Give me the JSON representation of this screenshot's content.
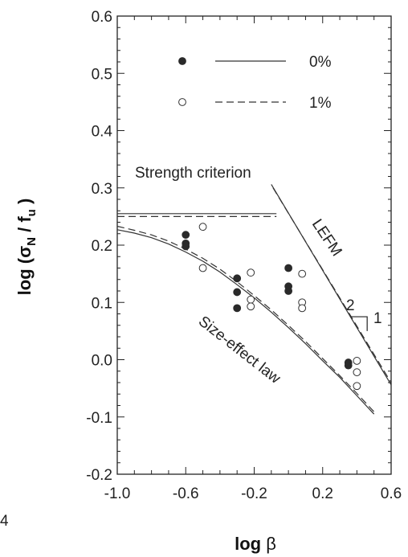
{
  "chart_data": {
    "type": "scatter",
    "xlabel_main": "log ",
    "xlabel_symbol": "β",
    "ylabel_main": "log (σ",
    "ylabel_sub1": "N",
    "ylabel_mid": " / f",
    "ylabel_sub2": "u",
    "ylabel_end": " )",
    "xlim": [
      -1.0,
      0.6
    ],
    "ylim": [
      -0.2,
      0.6
    ],
    "x_ticks": [
      -1.0,
      -0.6,
      -0.2,
      0.2,
      0.6
    ],
    "x_tick_labels": [
      "-1.0",
      "-0.6",
      "-0.2",
      "0.2",
      "0.6"
    ],
    "y_ticks": [
      -0.2,
      -0.1,
      0.0,
      0.1,
      0.2,
      0.3,
      0.4,
      0.5,
      0.6
    ],
    "y_tick_labels": [
      "-0.2",
      "-0.1",
      "0.0",
      "0.1",
      "0.2",
      "0.3",
      "0.4",
      "0.5",
      "0.6"
    ],
    "cutoff_label": "4",
    "grid": false,
    "legend_position": "top-right",
    "series": [
      {
        "name": "0%",
        "marker": "filled",
        "line_style": "solid",
        "points": [
          [
            -0.6,
            0.218
          ],
          [
            -0.6,
            0.203
          ],
          [
            -0.6,
            0.198
          ],
          [
            -0.3,
            0.142
          ],
          [
            -0.3,
            0.118
          ],
          [
            -0.3,
            0.09
          ],
          [
            0.0,
            0.16
          ],
          [
            0.0,
            0.128
          ],
          [
            0.0,
            0.12
          ],
          [
            0.35,
            -0.005
          ],
          [
            0.35,
            -0.01
          ]
        ],
        "size_effect_curve": [
          [
            -1.0,
            0.227
          ],
          [
            -0.9,
            0.221
          ],
          [
            -0.8,
            0.213
          ],
          [
            -0.7,
            0.202
          ],
          [
            -0.6,
            0.188
          ],
          [
            -0.5,
            0.172
          ],
          [
            -0.4,
            0.153
          ],
          [
            -0.3,
            0.131
          ],
          [
            -0.2,
            0.108
          ],
          [
            -0.1,
            0.083
          ],
          [
            0.0,
            0.056
          ],
          [
            0.1,
            0.028
          ],
          [
            0.2,
            -0.002
          ],
          [
            0.3,
            -0.031
          ],
          [
            0.4,
            -0.063
          ],
          [
            0.5,
            -0.095
          ]
        ],
        "strength_level": 0.255,
        "lefm_line": [
          [
            -0.1,
            0.306
          ],
          [
            0.6,
            -0.044
          ]
        ]
      },
      {
        "name": "1%",
        "marker": "open",
        "line_style": "dashed",
        "points": [
          [
            -0.5,
            0.232
          ],
          [
            -0.5,
            0.16
          ],
          [
            -0.22,
            0.152
          ],
          [
            -0.22,
            0.105
          ],
          [
            -0.22,
            0.093
          ],
          [
            0.08,
            0.15
          ],
          [
            0.08,
            0.1
          ],
          [
            0.08,
            0.09
          ],
          [
            0.4,
            -0.002
          ],
          [
            0.4,
            -0.022
          ],
          [
            0.4,
            -0.046
          ]
        ],
        "size_effect_curve": [
          [
            -1.0,
            0.233
          ],
          [
            -0.9,
            0.226
          ],
          [
            -0.8,
            0.218
          ],
          [
            -0.7,
            0.207
          ],
          [
            -0.6,
            0.193
          ],
          [
            -0.5,
            0.177
          ],
          [
            -0.4,
            0.158
          ],
          [
            -0.3,
            0.136
          ],
          [
            -0.2,
            0.112
          ],
          [
            -0.1,
            0.087
          ],
          [
            0.0,
            0.06
          ],
          [
            0.1,
            0.032
          ],
          [
            0.2,
            0.002
          ],
          [
            0.3,
            -0.028
          ],
          [
            0.4,
            -0.059
          ],
          [
            0.5,
            -0.091
          ]
        ],
        "strength_level": 0.25,
        "lefm_line": [
          [
            -0.09,
            0.3
          ],
          [
            0.6,
            -0.04
          ]
        ]
      }
    ],
    "annotations": {
      "strength": "Strength criterion",
      "lefm": "LEFM",
      "size_effect": "Size-effect law",
      "slope_run": "2",
      "slope_rise": "1"
    },
    "colors": {
      "axis": "#222222",
      "filled_marker": "#2a2a2a",
      "line": "#333333"
    }
  }
}
